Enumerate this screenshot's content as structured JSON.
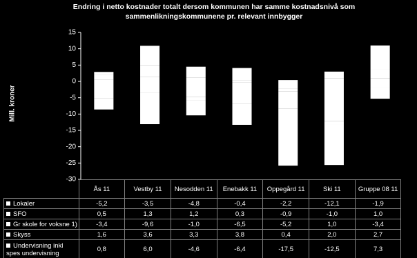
{
  "chart_data": {
    "type": "bar",
    "stacked": true,
    "title": "Endring i netto kostnader totalt dersom kommunen har samme kostnadsnivå som sammenlikningskommunene pr. relevant innbygger",
    "y_label": "Mill. kroner",
    "categories": [
      "Ås 11",
      "Vestby 11",
      "Nesodden 11",
      "Enebakk 11",
      "Oppegård 11",
      "Ski 11",
      "Gruppe 08 11"
    ],
    "ylim": [
      -30,
      15
    ],
    "yticks": [
      -30,
      -25,
      -20,
      -15,
      -10,
      -5,
      0,
      5,
      10,
      15
    ],
    "series": [
      {
        "name": "Lokaler",
        "color": "#ffffff",
        "values": [
          -5.2,
          -3.5,
          -4.8,
          -0.4,
          -2.2,
          -12.1,
          -1.9
        ],
        "value_labels": [
          "-5,2",
          "-3,5",
          "-4,8",
          "-0,4",
          "-2,2",
          "-12,1",
          "-1,9"
        ]
      },
      {
        "name": "SFO",
        "color": "#ffffff",
        "values": [
          0.5,
          1.3,
          1.2,
          0.3,
          -0.9,
          -1.0,
          1.0
        ],
        "value_labels": [
          "0,5",
          "1,3",
          "1,2",
          "0,3",
          "-0,9",
          "-1,0",
          "1,0"
        ]
      },
      {
        "name": "Gr skole for voksne 1)",
        "color": "#ffffff",
        "values": [
          -3.4,
          -9.6,
          -1.0,
          -6.5,
          -5.2,
          1.0,
          -3.4
        ],
        "value_labels": [
          "-3,4",
          "-9,6",
          "-1,0",
          "-6,5",
          "-5,2",
          "1,0",
          "-3,4"
        ]
      },
      {
        "name": "Skyss",
        "color": "#ffffff",
        "values": [
          1.6,
          3.6,
          3.3,
          3.8,
          0.4,
          2.0,
          2.7
        ],
        "value_labels": [
          "1,6",
          "3,6",
          "3,3",
          "3,8",
          "0,4",
          "2,0",
          "2,7"
        ]
      },
      {
        "name": "Undervisning inkl spes undervisning",
        "color": "#ffffff",
        "values": [
          0.8,
          6.0,
          -4.6,
          -6.4,
          -17.5,
          -12.5,
          7.3
        ],
        "value_labels": [
          "0,8",
          "6,0",
          "-4,6",
          "-6,4",
          "-17,5",
          "-12,5",
          "7,3"
        ]
      }
    ]
  }
}
